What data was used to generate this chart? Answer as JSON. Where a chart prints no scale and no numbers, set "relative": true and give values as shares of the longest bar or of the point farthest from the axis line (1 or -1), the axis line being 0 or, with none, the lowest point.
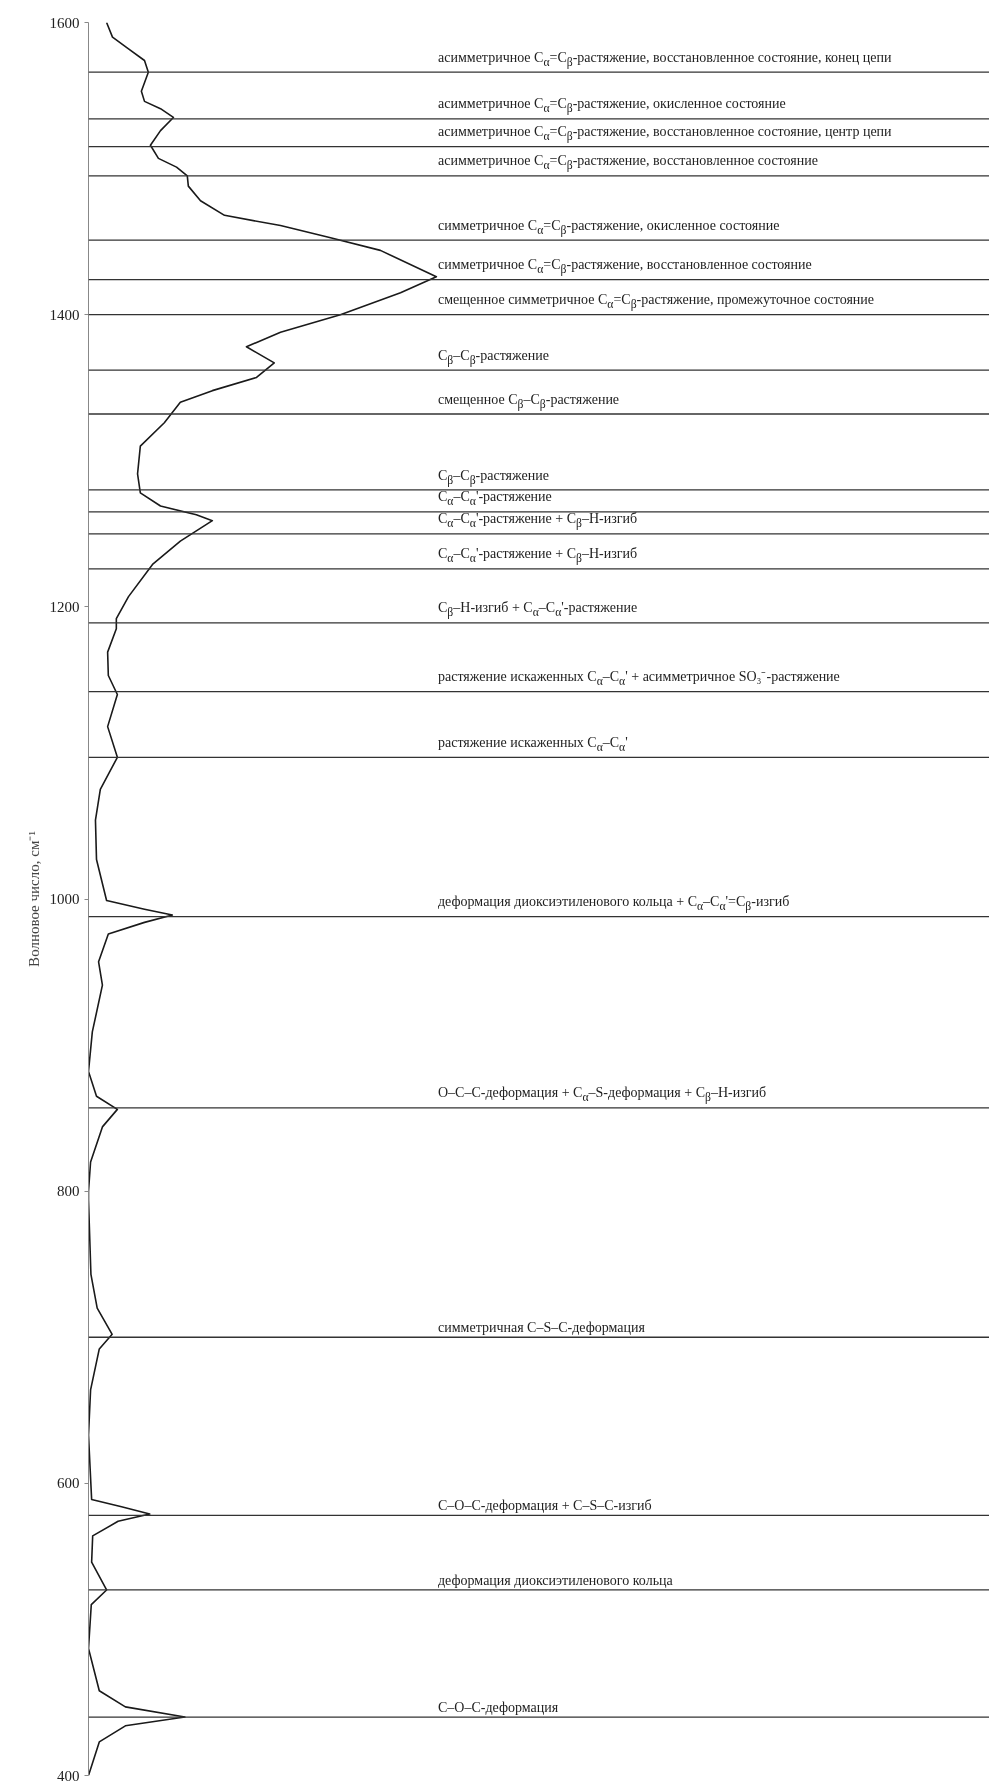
{
  "chart_data": {
    "type": "line",
    "orientation": "horizontal",
    "relative": true,
    "ylabel": "Волновое число, см⁻¹",
    "ylim": [
      400,
      1600
    ],
    "yticks": [
      400,
      600,
      800,
      1000,
      1200,
      1400,
      1600
    ],
    "grid": false,
    "tick_labels": "y",
    "x": [
      1600,
      1590,
      1582,
      1574,
      1566,
      1553,
      1546,
      1541,
      1535,
      1526,
      1516,
      1507,
      1501,
      1495,
      1488,
      1478,
      1468,
      1461,
      1453,
      1444,
      1426,
      1415,
      1400,
      1388,
      1378,
      1374,
      1367,
      1357,
      1348,
      1340,
      1326,
      1310,
      1291,
      1278,
      1269,
      1263,
      1259,
      1245,
      1229,
      1207,
      1192,
      1185,
      1169,
      1153,
      1140,
      1118,
      1097,
      1075,
      1054,
      1027,
      999,
      993,
      989,
      984,
      976,
      957,
      941,
      909,
      882,
      865,
      856,
      844,
      820,
      800,
      794,
      743,
      720,
      702,
      692,
      664,
      633,
      589,
      584,
      579,
      574,
      564,
      546,
      527,
      517,
      487,
      458,
      447,
      440,
      434,
      423,
      400
    ],
    "series": [
      {
        "color": "#1a1a1a",
        "values": [
          0.052,
          0.069,
          0.115,
          0.161,
          0.172,
          0.152,
          0.161,
          0.207,
          0.244,
          0.207,
          0.178,
          0.201,
          0.253,
          0.284,
          0.287,
          0.322,
          0.391,
          0.552,
          0.69,
          0.839,
          1,
          0.897,
          0.724,
          0.552,
          0.454,
          0.483,
          0.534,
          0.483,
          0.356,
          0.264,
          0.218,
          0.149,
          0.141,
          0.149,
          0.207,
          0.31,
          0.356,
          0.264,
          0.184,
          0.115,
          0.08,
          0.08,
          0.055,
          0.057,
          0.083,
          0.055,
          0.083,
          0.034,
          0.02,
          0.023,
          0.052,
          0.161,
          0.241,
          0.161,
          0.057,
          0.029,
          0.04,
          0.011,
          0,
          0.023,
          0.083,
          0.04,
          0.006,
          0,
          0,
          0.007,
          0.025,
          0.068,
          0.031,
          0.006,
          0,
          0.009,
          0.095,
          0.176,
          0.085,
          0.012,
          0.009,
          0.052,
          0.008,
          0,
          0.031,
          0.106,
          0.277,
          0.106,
          0.031,
          0
        ]
      }
    ],
    "ref_lines": [
      {
        "axis": "y",
        "value": 1566,
        "color": "#333333",
        "label": "асимметричное C$_{α}$=C$_{β}$-растяжение, восстановленное состояние, конец цепи"
      },
      {
        "axis": "y",
        "value": 1534,
        "color": "#333333",
        "label": "асимметричное C$_{α}$=C$_{β}$-растяжение, окисленное состояние"
      },
      {
        "axis": "y",
        "value": 1515,
        "color": "#333333",
        "label": "асимметричное C$_{α}$=C$_{β}$-растяжение, восстановленное состояние, центр цепи"
      },
      {
        "axis": "y",
        "value": 1495,
        "color": "#333333",
        "label": "асимметричное C$_{α}$=C$_{β}$-растяжение, восстановленное состояние"
      },
      {
        "axis": "y",
        "value": 1451,
        "color": "#333333",
        "label": "симметричное C$_{α}$=C$_{β}$-растяжение, окисленное состояние"
      },
      {
        "axis": "y",
        "value": 1424,
        "color": "#333333",
        "label": "симметричное C$_{α}$=C$_{β}$-растяжение, восстановленное состояние"
      },
      {
        "axis": "y",
        "value": 1400,
        "color": "#333333",
        "label": "смещенное симметричное C$_{α}$=C$_{β}$-растяжение, промежуточное состояние"
      },
      {
        "axis": "y",
        "value": 1362,
        "color": "#333333",
        "label": "C$_{β}$–C$_{β}$-растяжение"
      },
      {
        "axis": "y",
        "value": 1332,
        "color": "#333333",
        "label": "смещенное C$_{β}$–C$_{β}$-растяжение"
      },
      {
        "axis": "y",
        "value": 1280,
        "color": "#333333",
        "label": "C$_{β}$–C$_{β}$-растяжение"
      },
      {
        "axis": "y",
        "value": 1265,
        "color": "#333333",
        "label": "C$_{α}$–C$_{α}$'-растяжение"
      },
      {
        "axis": "y",
        "value": 1250,
        "color": "#333333",
        "label": "C$_{α}$–C$_{α}$'-растяжение + C$_{β}$–H-изгиб"
      },
      {
        "axis": "y",
        "value": 1226,
        "color": "#333333",
        "label": "C$_{α}$–C$_{α}$'-растяжение + C$_{β}$–H-изгиб"
      },
      {
        "axis": "y",
        "value": 1189,
        "color": "#333333",
        "label": "C$_{β}$–H-изгиб + C$_{α}$–C$_{α}$'-растяжение"
      },
      {
        "axis": "y",
        "value": 1142,
        "color": "#333333",
        "label": "растяжение искаженных C$_{α}$–C$_{α}$' + асимметричное SO₃⁻-растяжение"
      },
      {
        "axis": "y",
        "value": 1097,
        "color": "#333333",
        "label": "растяжение искаженных C$_{α}$–C$_{α}$'"
      },
      {
        "axis": "y",
        "value": 988,
        "color": "#333333",
        "label": "деформация диоксиэтиленового кольца + C$_{α}$–C$_{α}$'=C$_{β}$-изгиб"
      },
      {
        "axis": "y",
        "value": 857,
        "color": "#333333",
        "label": "O–C–C-деформация + C$_{α}$–S-деформация + C$_{β}$–H-изгиб"
      },
      {
        "axis": "y",
        "value": 700,
        "color": "#333333",
        "label": "симметричная C–S–C-деформация"
      },
      {
        "axis": "y",
        "value": 578,
        "color": "#333333",
        "label": "C–O–C-деформация + C–S–C-изгиб"
      },
      {
        "axis": "y",
        "value": 527,
        "color": "#333333",
        "label": "деформация диоксиэтиленового кольца"
      },
      {
        "axis": "y",
        "value": 440,
        "color": "#333333",
        "label": "C–O–C-деформация"
      }
    ]
  }
}
